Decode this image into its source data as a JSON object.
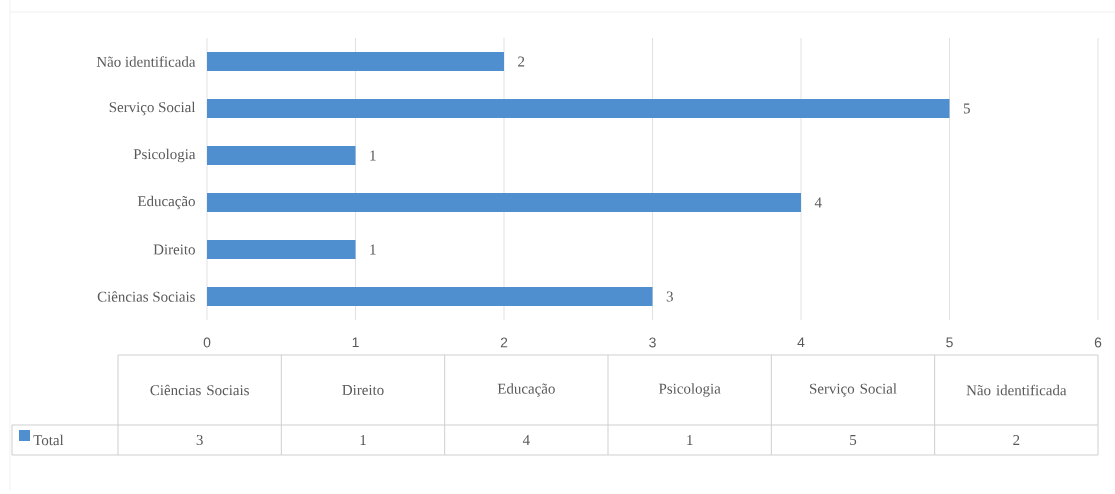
{
  "chart_data": [
    {
      "type": "bar",
      "orientation": "horizontal",
      "categories": [
        "Não identificada",
        "Serviço Social",
        "Psicologia",
        "Educação",
        "Direito",
        "Ciências Sociais"
      ],
      "series": [
        {
          "color": "#4f8fd0",
          "values": [
            2,
            5,
            1,
            4,
            1,
            3
          ]
        }
      ],
      "xlim": [
        0,
        6
      ],
      "xticks": [
        0,
        1,
        2,
        3,
        4,
        5,
        6
      ],
      "grid": "x",
      "data_labels": true
    },
    {
      "type": "other",
      "categories": [
        "Ciências Sociais",
        "Direito",
        "Educação",
        "Psicologia",
        "Serviço Social",
        "Não identificada"
      ],
      "series": [
        {
          "name": "Total",
          "color": "#4f8fd0",
          "values": [
            3,
            1,
            4,
            1,
            5,
            2
          ]
        }
      ],
      "data_labels": true,
      "legend": "bottom"
    }
  ]
}
